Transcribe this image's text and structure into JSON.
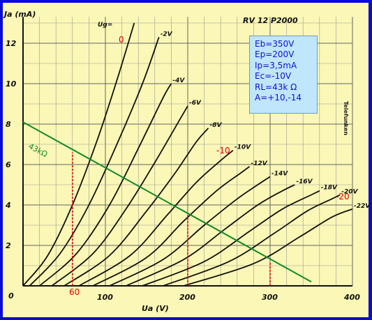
{
  "chart_data": {
    "type": "line",
    "title": "RV 12 P2000",
    "xlabel": "Ua (V)",
    "ylabel": "Ja (mA)",
    "xlim": [
      0,
      400
    ],
    "ylim": [
      0,
      13
    ],
    "x_ticks": [
      "100",
      "200",
      "300",
      "400"
    ],
    "y_ticks": [
      "2",
      "4",
      "6",
      "8",
      "10",
      "12"
    ],
    "origin_label": "0",
    "grid": true,
    "grid_label": "Ug=",
    "series": [
      {
        "name": "0",
        "points": [
          [
            0,
            0
          ],
          [
            30,
            1.5
          ],
          [
            60,
            4.0
          ],
          [
            90,
            7.2
          ],
          [
            115,
            10.3
          ],
          [
            135,
            13.0
          ]
        ]
      },
      {
        "name": "-2V",
        "points": [
          [
            8,
            0
          ],
          [
            45,
            1.6
          ],
          [
            80,
            4.0
          ],
          [
            115,
            7.1
          ],
          [
            145,
            10.0
          ],
          [
            165,
            12.3
          ]
        ]
      },
      {
        "name": "-4V",
        "points": [
          [
            20,
            0
          ],
          [
            65,
            1.6
          ],
          [
            105,
            4.0
          ],
          [
            140,
            6.8
          ],
          [
            170,
            9.3
          ],
          [
            180,
            10.0
          ]
        ]
      },
      {
        "name": "-6V",
        "points": [
          [
            35,
            0
          ],
          [
            85,
            1.6
          ],
          [
            125,
            3.8
          ],
          [
            160,
            6.1
          ],
          [
            190,
            8.2
          ],
          [
            200,
            8.9
          ]
        ]
      },
      {
        "name": "-8V",
        "points": [
          [
            50,
            0
          ],
          [
            105,
            1.5
          ],
          [
            150,
            3.7
          ],
          [
            185,
            5.6
          ],
          [
            210,
            7.1
          ],
          [
            225,
            7.8
          ]
        ]
      },
      {
        "name": "-10V",
        "points": [
          [
            68,
            0
          ],
          [
            130,
            1.5
          ],
          [
            175,
            3.5
          ],
          [
            210,
            5.1
          ],
          [
            240,
            6.2
          ],
          [
            255,
            6.7
          ]
        ]
      },
      {
        "name": "-12V",
        "points": [
          [
            85,
            0
          ],
          [
            150,
            1.4
          ],
          [
            195,
            3.2
          ],
          [
            235,
            4.7
          ],
          [
            265,
            5.6
          ],
          [
            275,
            5.9
          ]
        ]
      },
      {
        "name": "-14V",
        "points": [
          [
            105,
            0
          ],
          [
            170,
            1.3
          ],
          [
            220,
            3.0
          ],
          [
            260,
            4.3
          ],
          [
            285,
            5.0
          ],
          [
            300,
            5.4
          ]
        ]
      },
      {
        "name": "-16V",
        "points": [
          [
            125,
            0
          ],
          [
            195,
            1.3
          ],
          [
            245,
            2.8
          ],
          [
            285,
            4.0
          ],
          [
            315,
            4.7
          ],
          [
            330,
            5.0
          ]
        ]
      },
      {
        "name": "-18V",
        "points": [
          [
            145,
            0
          ],
          [
            220,
            1.2
          ],
          [
            275,
            2.7
          ],
          [
            315,
            3.8
          ],
          [
            350,
            4.5
          ],
          [
            360,
            4.7
          ]
        ]
      },
      {
        "name": "-20V",
        "points": [
          [
            170,
            0
          ],
          [
            250,
            1.2
          ],
          [
            305,
            2.6
          ],
          [
            345,
            3.7
          ],
          [
            375,
            4.3
          ],
          [
            385,
            4.5
          ]
        ]
      },
      {
        "name": "-22V",
        "points": [
          [
            195,
            0
          ],
          [
            280,
            1.1
          ],
          [
            335,
            2.4
          ],
          [
            375,
            3.4
          ],
          [
            400,
            3.8
          ]
        ]
      }
    ],
    "load_line": {
      "label": "43kΩ",
      "points": [
        [
          0,
          8.1
        ],
        [
          350,
          0.2
        ]
      ]
    },
    "operating_lines": [
      {
        "x": 60,
        "y": 6.6
      },
      {
        "x": 200,
        "y": 3.5
      },
      {
        "x": 300,
        "y": 1.2
      }
    ],
    "annotations": {
      "zero": "0",
      "minus10": "-10",
      "minus20": "-20",
      "x60": "60"
    },
    "side_text": "Telefunken"
  },
  "infobox": {
    "lines": [
      "Eb=350V",
      "Ep=200V",
      "Ip=3,5mA",
      "Ec=-10V",
      "RL=43k Ω",
      "A=+10,-14"
    ]
  },
  "colors": {
    "background": "#fbf7b6",
    "frame": "#0b0bd6",
    "load_line": "#118a2a",
    "annotation": "#e00000",
    "infobox": "#bfe6fb"
  }
}
